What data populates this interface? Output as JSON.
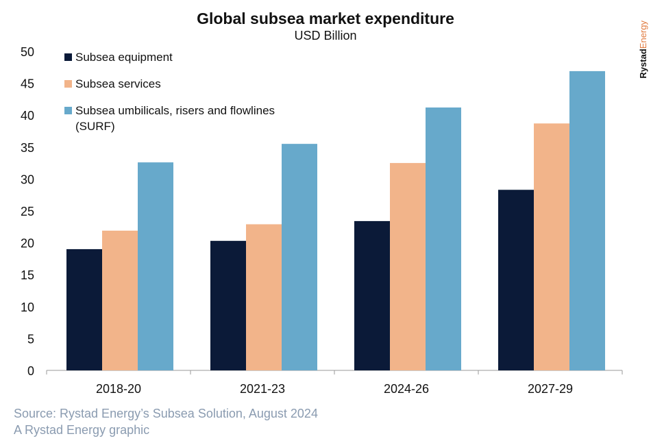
{
  "chart_data": {
    "type": "bar",
    "title": "Global subsea market expenditure",
    "subtitle": "USD Billion",
    "categories": [
      "2018-20",
      "2021-23",
      "2024-26",
      "2027-29"
    ],
    "series": [
      {
        "name": "Subsea equipment",
        "color": "#0b1a38",
        "values": [
          19.0,
          20.3,
          23.4,
          28.3
        ]
      },
      {
        "name": "Subsea services",
        "color": "#f2b48a",
        "values": [
          21.9,
          22.9,
          32.5,
          38.7
        ]
      },
      {
        "name": "Subsea umbilicals, risers and flowlines (SURF)",
        "color": "#67a9cb",
        "values": [
          32.6,
          35.5,
          41.2,
          46.9
        ]
      }
    ],
    "ylim": [
      0,
      50
    ],
    "yticks": [
      0,
      5,
      10,
      15,
      20,
      25,
      30,
      35,
      40,
      45,
      50
    ],
    "grid": false,
    "legend": "top-left"
  },
  "logo": {
    "part1": "Rystad",
    "part2": "Energy"
  },
  "source": "Source: Rystad Energy’s Subsea Solution, August 2024",
  "credit": "A Rystad Energy graphic"
}
